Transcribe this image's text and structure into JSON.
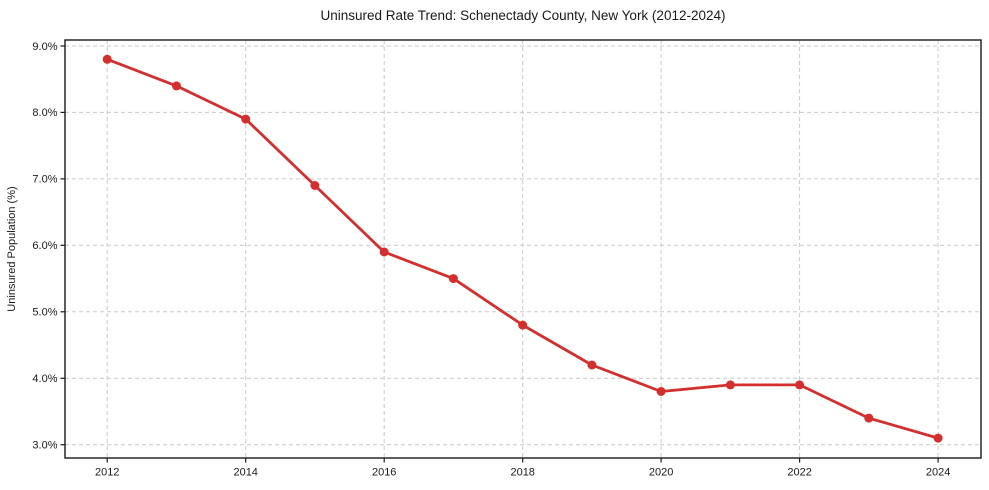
{
  "chart_data": {
    "type": "line",
    "title": "Uninsured Rate Trend: Schenectady County, New York (2012-2024)",
    "xlabel": "",
    "ylabel": "Uninsured Population (%)",
    "x": [
      2012,
      2013,
      2014,
      2015,
      2016,
      2017,
      2018,
      2019,
      2020,
      2021,
      2022,
      2023,
      2024
    ],
    "values": [
      8.8,
      8.4,
      7.9,
      6.9,
      5.9,
      5.5,
      4.8,
      4.2,
      3.8,
      3.9,
      3.9,
      3.4,
      3.1
    ],
    "x_tick_values": [
      2012,
      2014,
      2016,
      2018,
      2020,
      2022,
      2024
    ],
    "x_tick_labels": [
      "2012",
      "2014",
      "2016",
      "2018",
      "2020",
      "2022",
      "2024"
    ],
    "y_tick_values": [
      3,
      4,
      5,
      6,
      7,
      8,
      9
    ],
    "y_tick_labels": [
      "3.0%",
      "4.0%",
      "5.0%",
      "6.0%",
      "7.0%",
      "8.0%",
      "9.0%"
    ],
    "xlim": [
      2011.39,
      2024.62
    ],
    "ylim": [
      2.8,
      9.09
    ],
    "grid": true,
    "legend": null,
    "line_color": "#d32f2f",
    "marker": "circle",
    "marker_color": "#d32f2f",
    "grid_color": "#c9c9c9",
    "axis_color": "#1a1a1a",
    "background_color": "#ffffff"
  }
}
